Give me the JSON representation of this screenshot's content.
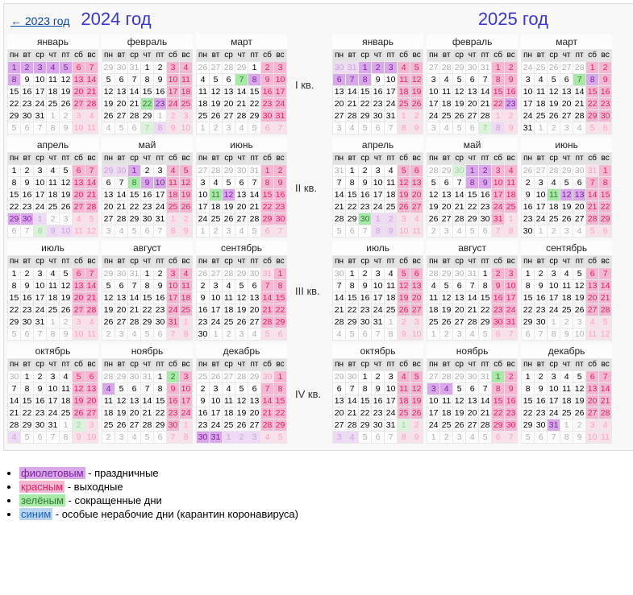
{
  "back_link": "← 2023 год",
  "year1": {
    "title": "2024 год",
    "year": 2024
  },
  "year2": {
    "title": "2025 год",
    "year": 2025
  },
  "day_headers": [
    "пн",
    "вт",
    "ср",
    "чт",
    "пт",
    "сб",
    "вс"
  ],
  "month_names": [
    "январь",
    "февраль",
    "март",
    "апрель",
    "май",
    "июнь",
    "июль",
    "август",
    "сентябрь",
    "октябрь",
    "ноябрь",
    "декабрь"
  ],
  "quarter_labels": [
    "I кв.",
    "II кв.",
    "III кв.",
    "IV кв."
  ],
  "legend": [
    {
      "cls": "lg-purple",
      "label": "фиолетовым",
      "desc": " - праздничные"
    },
    {
      "cls": "lg-red",
      "label": "красным",
      "desc": " - выходные"
    },
    {
      "cls": "lg-green",
      "label": "зелёным",
      "desc": " - сокращенные дни"
    },
    {
      "cls": "lg-blue",
      "label": "синим",
      "desc": " - особые нерабочие дни (карантин коронавируса)"
    }
  ],
  "colors": {
    "holiday_bg": "#d8a8e8",
    "holiday_fg": "#7b1fa2",
    "weekend_bg": "#f4b8d2",
    "weekend_fg": "#e91e63",
    "short_bg": "#a8e8a8",
    "short_fg": "#2e7d32",
    "special_bg": "#b8d4f0",
    "special_fg": "#1565c0",
    "other_fg": "#b0b0b0",
    "header_bg": "#e2e2e2"
  },
  "specials": {
    "2024": {
      "holiday": [
        "1-1",
        "1-2",
        "1-3",
        "1-4",
        "1-5",
        "1-8",
        "2-23",
        "3-8",
        "4-29",
        "4-30",
        "5-1",
        "5-9",
        "5-10",
        "6-12",
        "11-4",
        "12-30",
        "12-31"
      ],
      "short": [
        "2-22",
        "3-7",
        "5-8",
        "6-11",
        "11-2"
      ]
    },
    "2025": {
      "holiday": [
        "1-1",
        "1-2",
        "1-3",
        "1-6",
        "1-7",
        "1-8",
        "2-23",
        "3-8",
        "5-1",
        "5-2",
        "5-8",
        "5-9",
        "6-12",
        "6-13",
        "11-3",
        "11-4",
        "12-31"
      ],
      "short": [
        "3-7",
        "4-30",
        "6-11",
        "11-1"
      ]
    }
  }
}
